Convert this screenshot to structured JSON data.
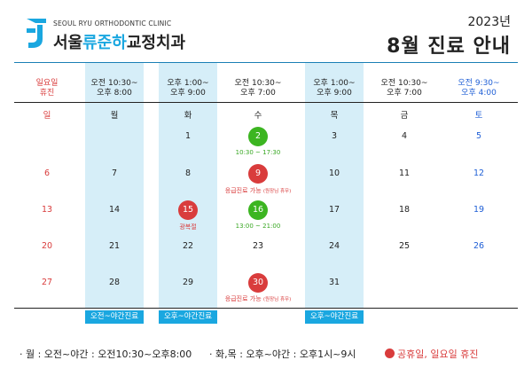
{
  "header": {
    "clinic_en": "SEOUL RYU ORTHODONTIC CLINIC",
    "clinic_ko_part1": "서울",
    "clinic_ko_part2": "류준하",
    "clinic_ko_part3": "교정치과",
    "year": "2023년",
    "title": "8월 진료 안내"
  },
  "columns": [
    {
      "hours1": "일요일",
      "hours2": "휴진",
      "dow": "일",
      "color": "red"
    },
    {
      "hours1": "오전 10:30~",
      "hours2": "오후 8:00",
      "dow": "월",
      "color": "black"
    },
    {
      "hours1": "오후 1:00~",
      "hours2": "오후 9:00",
      "dow": "화",
      "color": "black"
    },
    {
      "hours1": "오전 10:30~",
      "hours2": "오후 7:00",
      "dow": "수",
      "color": "black"
    },
    {
      "hours1": "오후 1:00~",
      "hours2": "오후 9:00",
      "dow": "목",
      "color": "black"
    },
    {
      "hours1": "오전 10:30~",
      "hours2": "오후 7:00",
      "dow": "금",
      "color": "black"
    },
    {
      "hours1": "오전 9:30~",
      "hours2": "오후 4:00",
      "dow": "토",
      "color": "blue"
    }
  ],
  "days": {
    "d1": "1",
    "d2": "2",
    "d3": "3",
    "d4": "4",
    "d5": "5",
    "d6": "6",
    "d7": "7",
    "d8": "8",
    "d9": "9",
    "d10": "10",
    "d11": "11",
    "d12": "12",
    "d13": "13",
    "d14": "14",
    "d15": "15",
    "d16": "16",
    "d17": "17",
    "d18": "18",
    "d19": "19",
    "d20": "20",
    "d21": "21",
    "d22": "22",
    "d23": "23",
    "d24": "24",
    "d25": "25",
    "d26": "26",
    "d27": "27",
    "d28": "28",
    "d29": "29",
    "d30": "30",
    "d31": "31"
  },
  "notes": {
    "n2": "10:30 ~ 17:30",
    "n9": "응급진료 가능",
    "n9_small": "(원장님 휴무)",
    "n15": "광복절",
    "n16": "13:00 ~ 21:00",
    "n30": "응급진료 가능",
    "n30_small": "(원장님 휴무)"
  },
  "tags": {
    "mon": "오전~야간진료",
    "tue": "오후~야간진료",
    "thu": "오후~야간진료"
  },
  "legend": {
    "mon": "· 월 : 오전~야간 : 오전10:30~오후8:00",
    "tuethu": "· 화,목 : 오후~야간 : 오후1시~9시",
    "holiday": "공휴일, 일요일 휴진"
  },
  "colors": {
    "accent": "#1aa7e0",
    "column_bg": "#d6eef8",
    "red": "#d93c3c",
    "green": "#3cb521",
    "blue": "#1f5fd6"
  }
}
